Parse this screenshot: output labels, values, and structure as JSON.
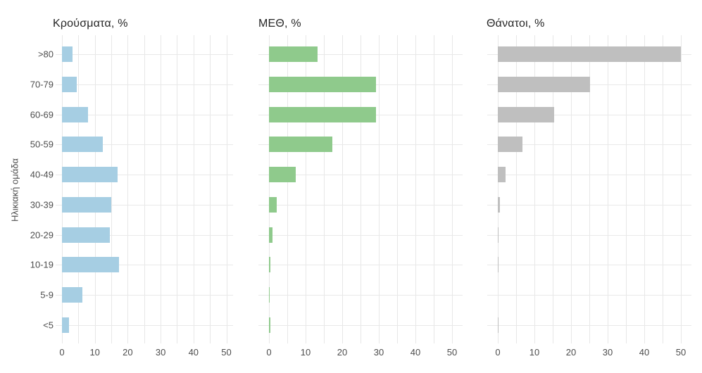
{
  "y_axis_label": "Ηλικιακή ομάδα",
  "x_axis": {
    "ticks": [
      0,
      10,
      20,
      30,
      40,
      50
    ],
    "range": [
      0,
      50
    ],
    "minor_step": 5
  },
  "colors": {
    "cases_bar": "#a6cee3",
    "icu_bar": "#8fca8c",
    "deaths_bar": "#bfbfbf",
    "grid": "#e7e7e7",
    "axis_text": "#4d4d4d",
    "title_text": "#262626"
  },
  "chart_data": [
    {
      "type": "bar",
      "orientation": "horizontal",
      "title": "Κρούσματα, %",
      "color": "#a6cee3",
      "categories": [
        ">80",
        "70-79",
        "60-69",
        "50-59",
        "40-49",
        "30-39",
        "20-29",
        "10-19",
        "5-9",
        "<5"
      ],
      "values": [
        3.2,
        4.6,
        7.9,
        12.5,
        17.0,
        14.9,
        14.6,
        17.3,
        6.3,
        2.1
      ],
      "xlabel": "",
      "ylabel": "Ηλικιακή ομάδα",
      "xlim": [
        0,
        50
      ],
      "grid": true,
      "legend": false
    },
    {
      "type": "bar",
      "orientation": "horizontal",
      "title": "ΜΕΘ, %",
      "color": "#8fca8c",
      "categories": [
        ">80",
        "70-79",
        "60-69",
        "50-59",
        "40-49",
        "30-39",
        "20-29",
        "10-19",
        "5-9",
        "<5"
      ],
      "values": [
        13.3,
        29.2,
        29.2,
        17.4,
        7.3,
        2.2,
        1.0,
        0.4,
        0.2,
        0.3
      ],
      "xlabel": "",
      "ylabel": "",
      "xlim": [
        0,
        50
      ],
      "grid": true,
      "legend": false
    },
    {
      "type": "bar",
      "orientation": "horizontal",
      "title": "Θάνατοι, %",
      "color": "#bfbfbf",
      "categories": [
        ">80",
        "70-79",
        "60-69",
        "50-59",
        "40-49",
        "30-39",
        "20-29",
        "10-19",
        "5-9",
        "<5"
      ],
      "values": [
        50.0,
        25.1,
        15.4,
        6.8,
        2.1,
        0.5,
        0.1,
        0.1,
        0.0,
        0.1
      ],
      "xlabel": "",
      "ylabel": "",
      "xlim": [
        0,
        50
      ],
      "grid": true,
      "legend": false
    }
  ]
}
